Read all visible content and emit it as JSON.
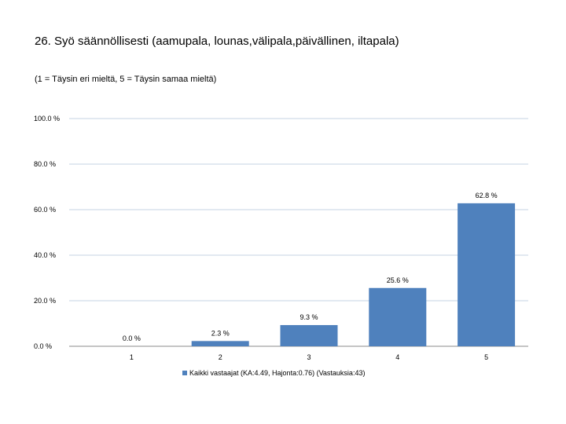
{
  "chart_data": {
    "type": "bar",
    "title": "26. Syö säännöllisesti (aamupala, lounas,välipala,päivällinen, iltapala)",
    "subtitle": "(1 = Täysin eri mieltä, 5 = Täysin samaa mieltä)",
    "categories": [
      "1",
      "2",
      "3",
      "4",
      "5"
    ],
    "series": [
      {
        "name": "Kaikki vastaajat (KA:4.49, Hajonta:0.76) (Vastauksia:43)",
        "values": [
          0.0,
          2.3,
          9.3,
          25.6,
          62.8
        ],
        "value_labels": [
          "0.0 %",
          "2.3 %",
          "9.3 %",
          "25.6 %",
          "62.8 %"
        ]
      }
    ],
    "ylim": [
      0,
      100
    ],
    "y_ticks": [
      0,
      20,
      40,
      60,
      80,
      100
    ],
    "y_tick_labels": [
      "0.0 %",
      "20.0 %",
      "40.0 %",
      "60.0 %",
      "80.0 %",
      "100.0 %"
    ],
    "grid": true,
    "legend_position": "bottom",
    "colors": {
      "bar": "#4f81bd",
      "grid": "#c6d3e3",
      "axis": "#888888"
    }
  }
}
